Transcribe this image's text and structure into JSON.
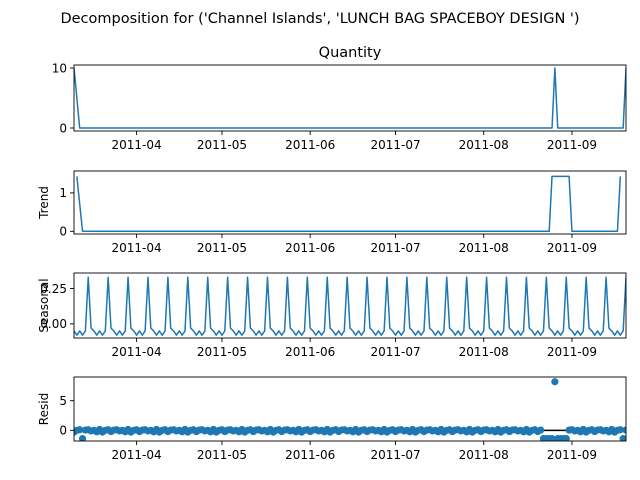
{
  "chart_data": {
    "type": "line",
    "title": "Decomposition for ('Channel Islands', 'LUNCH BAG SPACEBOY DESIGN ')",
    "x_range": [
      "2011-03-10",
      "2011-09-20"
    ],
    "x_ticks": [
      "2011-04",
      "2011-05",
      "2011-06",
      "2011-07",
      "2011-08",
      "2011-09"
    ],
    "panels": [
      {
        "id": "observed",
        "type": "line",
        "title": "Quantity",
        "ylabel": "",
        "ylim": [
          -0.5,
          10.5
        ],
        "yticks": [
          0,
          10
        ],
        "points": [
          [
            "2011-03-10",
            10
          ],
          [
            "2011-03-12",
            0
          ],
          [
            "2011-08-25",
            0
          ],
          [
            "2011-08-26",
            10
          ],
          [
            "2011-08-27",
            0
          ],
          [
            "2011-09-19",
            0
          ],
          [
            "2011-09-20",
            10
          ]
        ]
      },
      {
        "id": "trend",
        "type": "line",
        "title": "",
        "ylabel": "Trend",
        "ylim": [
          -0.07,
          1.57
        ],
        "yticks": [
          0,
          1
        ],
        "points": [
          [
            "2011-03-11",
            1.43
          ],
          [
            "2011-03-13",
            0
          ],
          [
            "2011-08-24",
            0
          ],
          [
            "2011-08-25",
            1.43
          ],
          [
            "2011-08-31",
            1.43
          ],
          [
            "2011-09-01",
            0
          ],
          [
            "2011-09-17",
            0
          ],
          [
            "2011-09-18",
            1.43
          ]
        ]
      },
      {
        "id": "seasonal",
        "type": "line",
        "title": "",
        "ylabel": "Seasonal",
        "ylim": [
          -0.1,
          0.36
        ],
        "yticks": [
          0.0,
          0.25
        ],
        "ytick_labels": [
          "0.00",
          "0.25"
        ],
        "period_days": 7,
        "pattern": [
          -0.05,
          -0.08,
          -0.05,
          -0.08,
          -0.05,
          0.33,
          -0.03
        ],
        "start": "2011-03-10"
      },
      {
        "id": "resid",
        "type": "scatter",
        "title": "",
        "ylabel": "Resid",
        "ylim": [
          -1.8,
          9.0
        ],
        "yticks": [
          0,
          5
        ],
        "baseline": 0,
        "start": "2011-03-10",
        "end": "2011-09-20",
        "base_pattern": [
          -0.3,
          0.0,
          0.1,
          -0.2,
          0.05,
          0.1,
          -0.1,
          0.0,
          -0.25,
          0.15
        ],
        "special": [
          {
            "x": "2011-03-13",
            "y": -1.4
          },
          {
            "x": "2011-08-22",
            "y": -1.4
          },
          {
            "x": "2011-08-23",
            "y": -1.4
          },
          {
            "x": "2011-08-24",
            "y": -1.4
          },
          {
            "x": "2011-08-25",
            "y": -1.4
          },
          {
            "x": "2011-08-26",
            "y": 8.2
          },
          {
            "x": "2011-08-27",
            "y": -1.4
          },
          {
            "x": "2011-08-28",
            "y": -1.4
          },
          {
            "x": "2011-08-29",
            "y": -1.4
          },
          {
            "x": "2011-08-30",
            "y": -1.4
          },
          {
            "x": "2011-09-19",
            "y": -1.4
          }
        ]
      }
    ],
    "line_color": "#1f77b4",
    "baseline_color": "#000000"
  }
}
